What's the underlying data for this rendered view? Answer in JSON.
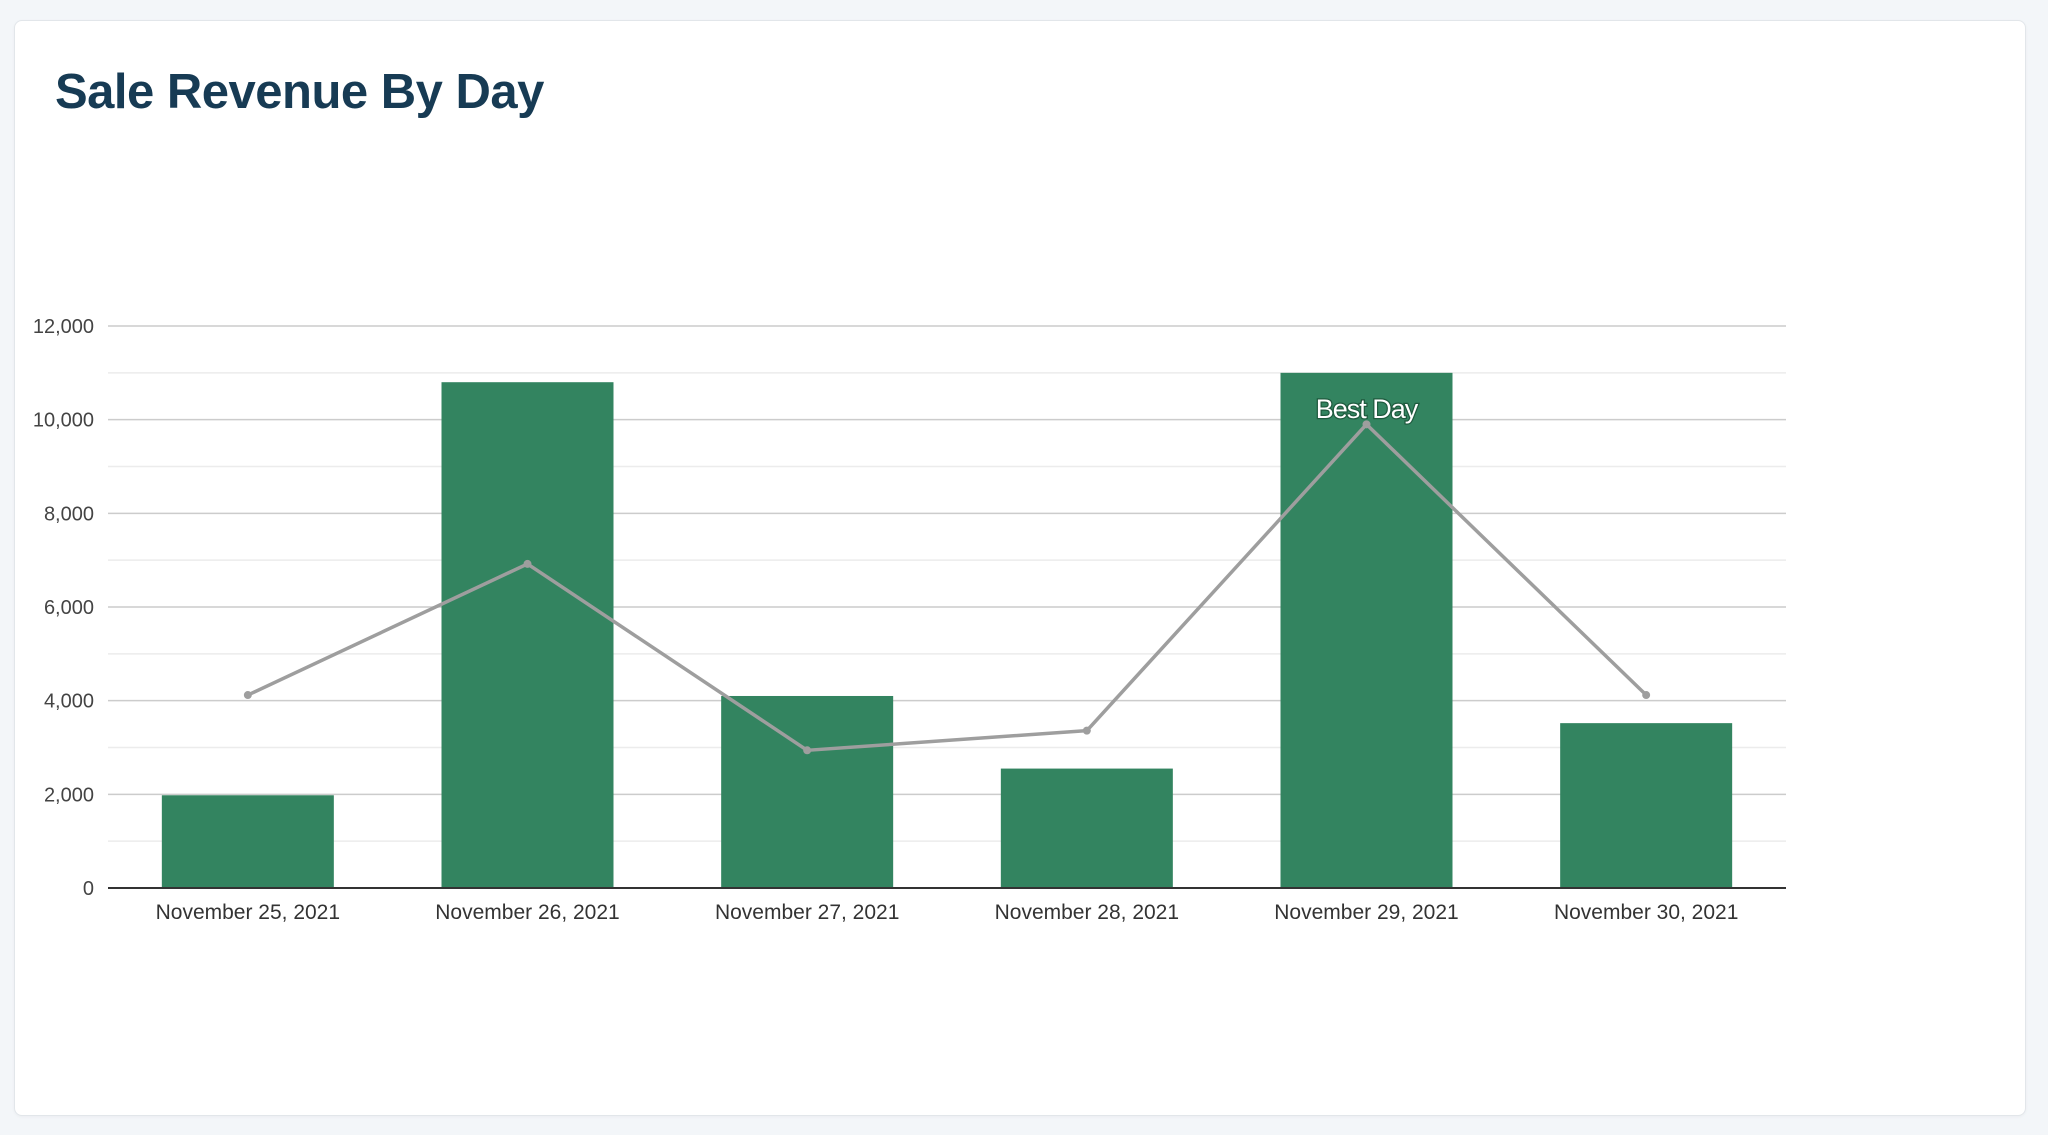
{
  "chart_data": {
    "type": "bar",
    "title": "Sale Revenue By Day",
    "xlabel": "",
    "ylabel": "",
    "categories": [
      "November 25, 2021",
      "November 26, 2021",
      "November 27, 2021",
      "November 28, 2021",
      "November 29, 2021",
      "November 30, 2021"
    ],
    "series": [
      {
        "type": "bar",
        "values": [
          1980,
          10800,
          4100,
          2550,
          11000,
          3520
        ],
        "color": "#338460"
      },
      {
        "type": "line",
        "values": [
          4120,
          6920,
          2940,
          3360,
          9900,
          4120
        ],
        "color": "#9e9e9e"
      }
    ],
    "ylim": [
      0,
      12000
    ],
    "yticks": [
      0,
      2000,
      4000,
      6000,
      8000,
      10000,
      12000
    ],
    "ytick_labels": [
      "0",
      "2,000",
      "4,000",
      "6,000",
      "8,000",
      "10,000",
      "12,000"
    ],
    "grid": true,
    "annotations": [
      {
        "category": "November 29, 2021",
        "text": "Best Day"
      }
    ]
  }
}
